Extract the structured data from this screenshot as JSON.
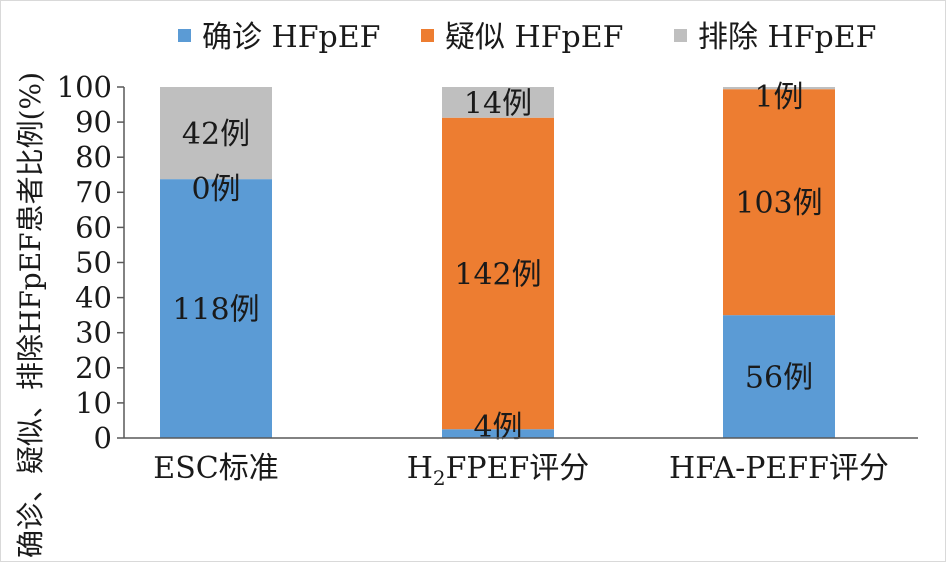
{
  "chart_data": {
    "type": "bar",
    "stacked": true,
    "ylabel": "确诊、疑似、排除HFpEF患者比例(%)",
    "ylim": [
      0,
      100
    ],
    "yticks": [
      0,
      10,
      20,
      30,
      40,
      50,
      60,
      70,
      80,
      90,
      100
    ],
    "grid": false,
    "legend_position": "top",
    "categories": [
      "ESC标准",
      "H2FPEF评分",
      "HFA-PEFF评分"
    ],
    "series": [
      {
        "name": "确诊 HFpEF",
        "color": "#5b9bd5",
        "values": [
          73.75,
          2.5,
          35.0
        ],
        "labels": [
          "118例",
          "4例",
          "56例"
        ]
      },
      {
        "name": "疑似 HFpEF",
        "color": "#ed7d31",
        "values": [
          0,
          88.75,
          64.375
        ],
        "labels": [
          "0例",
          "142例",
          "103例"
        ]
      },
      {
        "name": "排除 HFpEF",
        "color": "#bfbfbf",
        "values": [
          26.25,
          8.75,
          0.625
        ],
        "labels": [
          "42例",
          "14例",
          "1例"
        ]
      }
    ]
  }
}
